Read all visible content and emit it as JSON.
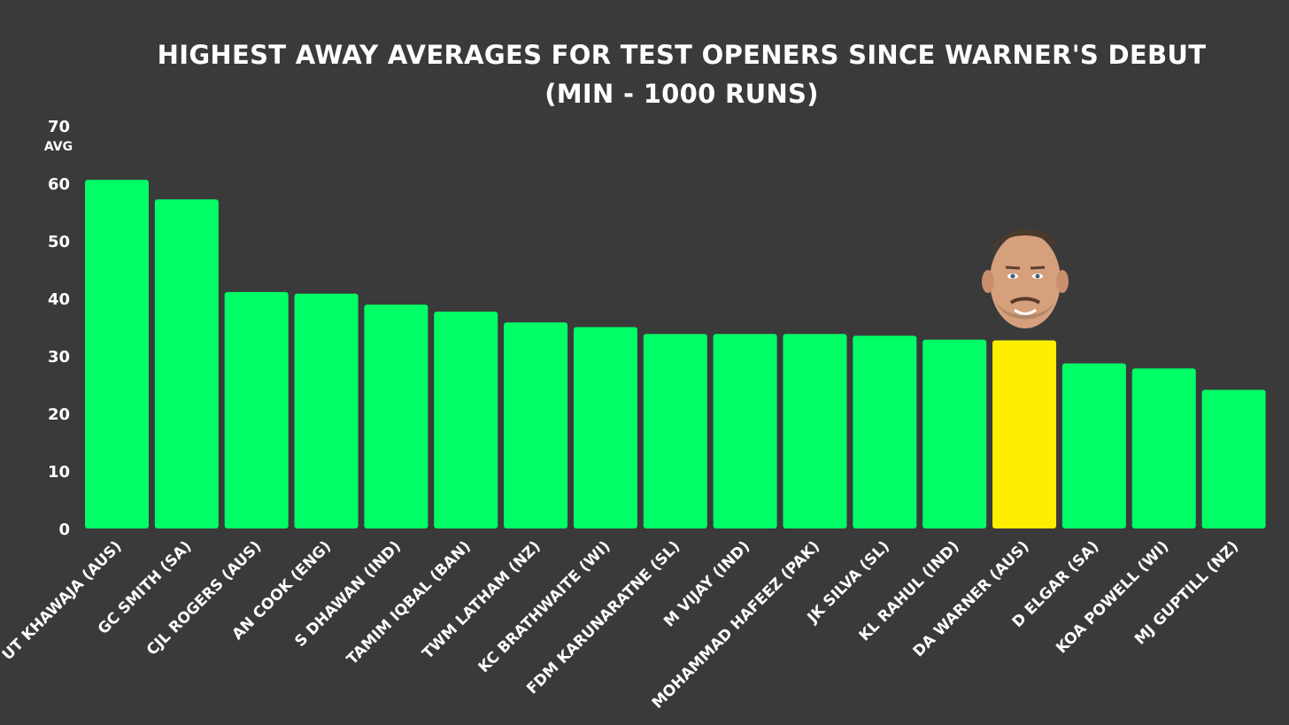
{
  "chart_data": {
    "type": "bar",
    "title_line1": "HIGHEST AWAY AVERAGES FOR TEST OPENERS SINCE WARNER'S DEBUT",
    "title_line2": "(MIN - 1000 RUNS)",
    "xlabel": "",
    "ylabel": "AVG",
    "ylim": [
      0,
      70
    ],
    "yticks": [
      0,
      10,
      20,
      30,
      40,
      50,
      60,
      70
    ],
    "grid": false,
    "categories": [
      "UT KHAWAJA (AUS)",
      "GC SMITH (SA)",
      "CJL ROGERS (AUS)",
      "AN COOK (ENG)",
      "S DHAWAN (IND)",
      "TAMIM IQBAL (BAN)",
      "TWM LATHAM (NZ)",
      "KC BRATHWAITE (WI)",
      "FDM KARUNARATNE (SL)",
      "M VIJAY (IND)",
      "MOHAMMAD HAFEEZ (PAK)",
      "JK SILVA (SL)",
      "KL RAHUL (IND)",
      "DA WARNER (AUS)",
      "D ELGAR (SA)",
      "KOA POWELL (WI)",
      "MJ GUPTILL (NZ)"
    ],
    "values": [
      60.6,
      57.2,
      41.1,
      40.8,
      38.9,
      37.7,
      35.8,
      35.0,
      33.8,
      33.8,
      33.8,
      33.5,
      32.8,
      32.7,
      28.7,
      27.8,
      24.1
    ],
    "highlight_index": 13,
    "colors": {
      "bar": "#00ff66",
      "highlight": "#ffee00",
      "background": "#3a3a3a",
      "text": "#ffffff"
    },
    "annotation_icon": "player-headshot-icon"
  }
}
